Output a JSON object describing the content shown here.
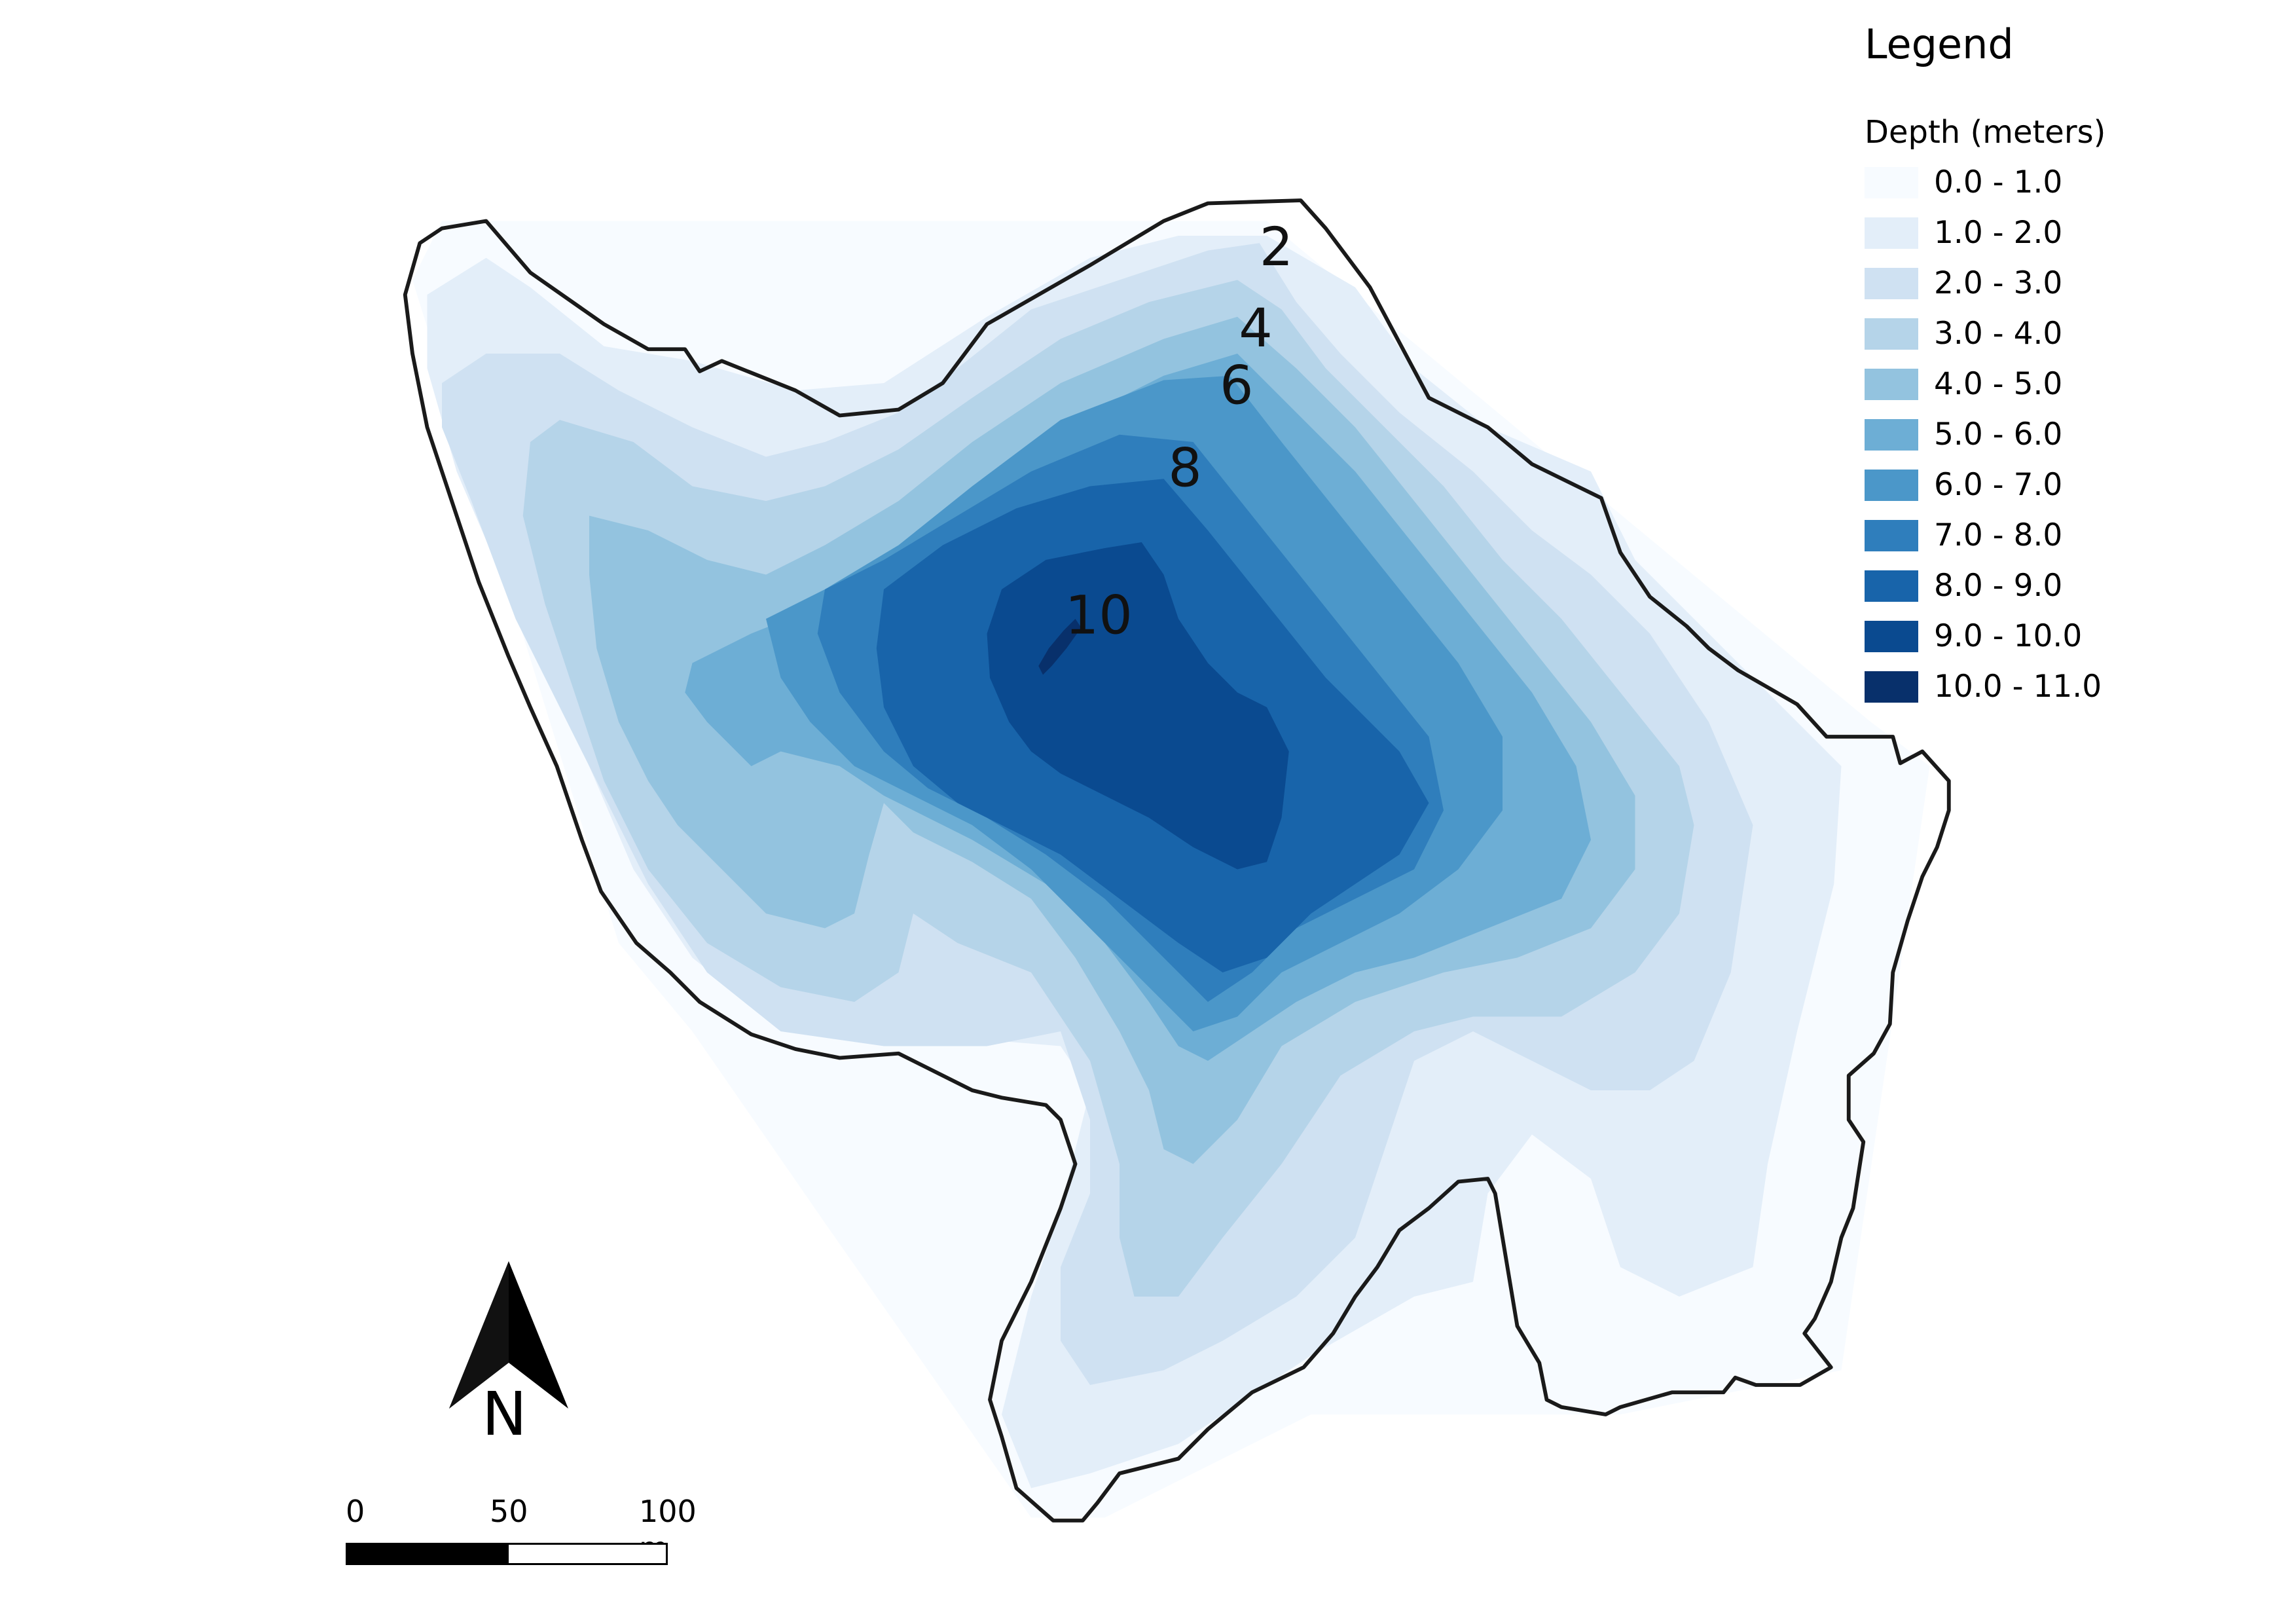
{
  "legend": {
    "title": "Legend",
    "subtitle": "Depth (meters)",
    "classes": [
      {
        "label": "0.0 - 1.0",
        "color": "#f7fbff"
      },
      {
        "label": "1.0 - 2.0",
        "color": "#e3eef9"
      },
      {
        "label": "2.0 - 3.0",
        "color": "#cfe1f2"
      },
      {
        "label": "3.0 - 4.0",
        "color": "#b5d4e9"
      },
      {
        "label": "4.0 - 5.0",
        "color": "#93c3df"
      },
      {
        "label": "5.0 - 6.0",
        "color": "#6daed5"
      },
      {
        "label": "6.0 - 7.0",
        "color": "#4b97c9"
      },
      {
        "label": "7.0 - 8.0",
        "color": "#2f7ebc"
      },
      {
        "label": "8.0 - 9.0",
        "color": "#1864aa"
      },
      {
        "label": "9.0 - 10.0",
        "color": "#0a4a90"
      },
      {
        "label": "10.0 - 11.0",
        "color": "#08306b"
      }
    ]
  },
  "contour_labels": [
    "2",
    "4",
    "6",
    "8",
    "10"
  ],
  "north_arrow": {
    "icon": "north-arrow-icon",
    "label": "N"
  },
  "scale_bar": {
    "ticks": [
      "0",
      "50",
      "100 m"
    ]
  },
  "lake_outline_color": "#1a1a1a"
}
